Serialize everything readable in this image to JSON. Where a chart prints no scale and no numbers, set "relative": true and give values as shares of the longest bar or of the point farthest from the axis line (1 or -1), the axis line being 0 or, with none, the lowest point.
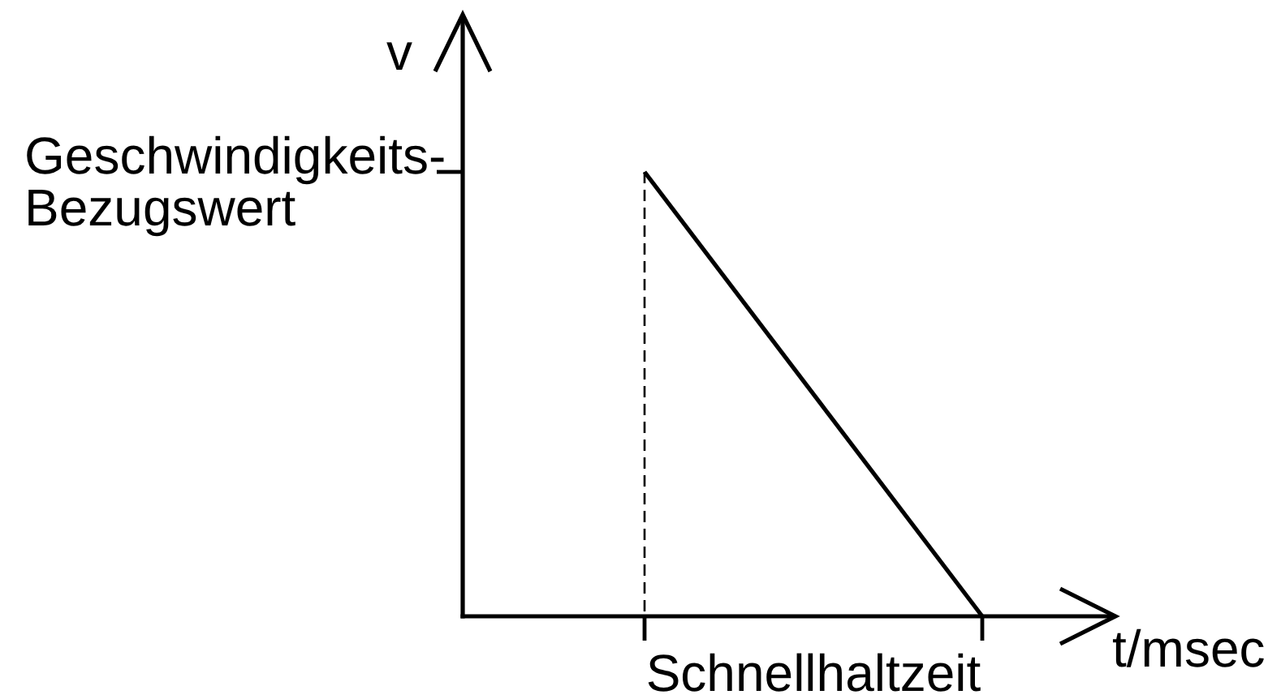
{
  "chart_data": {
    "type": "line",
    "relative": true,
    "xlabel": "t/msec",
    "ylabel": "v",
    "categories": [
      null,
      null
    ],
    "series": [
      {
        "color": "#000000",
        "values": [
          1,
          0
        ]
      }
    ],
    "annotations": [
      "Geschwindigkeits-Bezugswert",
      "Schnellhaltzeit"
    ]
  }
}
